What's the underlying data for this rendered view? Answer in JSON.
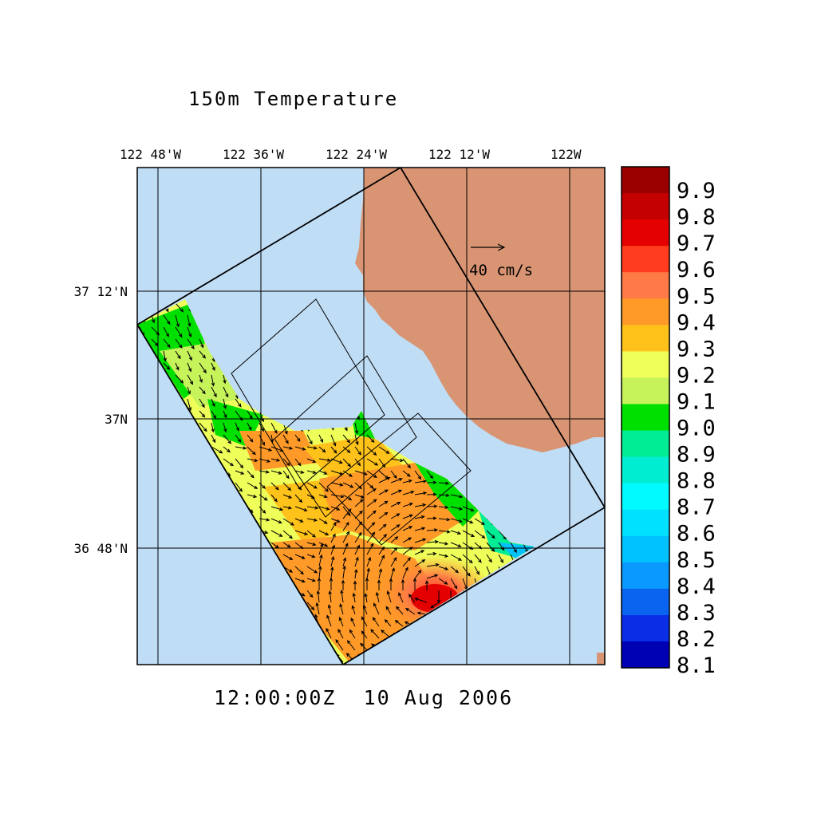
{
  "title": "150m Temperature",
  "timestamp": "12:00:00Z  10 Aug 2006",
  "longitude_labels": [
    "122 48'W",
    "122 36'W",
    "122 24'W",
    "122 12'W",
    "122W"
  ],
  "latitude_labels": [
    "37 12'N",
    "37N",
    "36 48'N"
  ],
  "reference_vector_label": "40 cm/s",
  "colors": {
    "ocean": "#c0ddf6",
    "land": "#d99473",
    "outline": "#000000"
  },
  "colorbar": {
    "labels": [
      "9.9",
      "9.8",
      "9.7",
      "9.6",
      "9.5",
      "9.4",
      "9.3",
      "9.2",
      "9.1",
      "9.0",
      "8.9",
      "8.8",
      "8.7",
      "8.6",
      "8.5",
      "8.4",
      "8.3",
      "8.2",
      "8.1"
    ],
    "colors": [
      "#9b0000",
      "#c40000",
      "#e40000",
      "#ff3c1e",
      "#ff7a46",
      "#ff9a28",
      "#ffc21a",
      "#eeff5a",
      "#c6f25a",
      "#00e000",
      "#00ed96",
      "#00edd2",
      "#00faff",
      "#00e0ff",
      "#00c2ff",
      "#0a9aff",
      "#0a64f0",
      "#0a2ee6",
      "#0000b4"
    ]
  },
  "field_icons": [
    "temperature-field",
    "current-vector-arrows"
  ]
}
